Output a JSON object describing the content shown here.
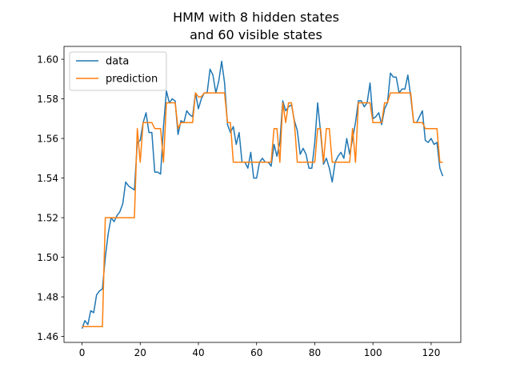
{
  "chart_data": {
    "type": "line",
    "title_lines": [
      "HMM with 8 hidden states",
      "and 60 visible states"
    ],
    "xlabel": "",
    "ylabel": "",
    "xlim": [
      -6.2,
      130.2
    ],
    "ylim": [
      1.457,
      1.6065
    ],
    "x_ticks": [
      0,
      20,
      40,
      60,
      80,
      100,
      120
    ],
    "y_ticks": [
      1.46,
      1.48,
      1.5,
      1.52,
      1.54,
      1.56,
      1.58,
      1.6
    ],
    "x_tick_labels": [
      "0",
      "20",
      "40",
      "60",
      "80",
      "100",
      "120"
    ],
    "y_tick_labels": [
      "1.46",
      "1.48",
      "1.50",
      "1.52",
      "1.54",
      "1.56",
      "1.58",
      "1.60"
    ],
    "grid": false,
    "legend_position": "top-left",
    "colors": {
      "data": "#1f77b4",
      "prediction": "#ff7f0e"
    },
    "series": [
      {
        "name": "data",
        "values": [
          1.464,
          1.468,
          1.466,
          1.473,
          1.472,
          1.481,
          1.483,
          1.484,
          1.5,
          1.512,
          1.52,
          1.518,
          1.521,
          1.523,
          1.527,
          1.538,
          1.536,
          1.535,
          1.534,
          1.558,
          1.559,
          1.568,
          1.573,
          1.563,
          1.563,
          1.543,
          1.543,
          1.542,
          1.566,
          1.584,
          1.578,
          1.58,
          1.579,
          1.562,
          1.569,
          1.568,
          1.574,
          1.572,
          1.571,
          1.583,
          1.575,
          1.58,
          1.583,
          1.583,
          1.595,
          1.592,
          1.583,
          1.589,
          1.599,
          1.588,
          1.567,
          1.563,
          1.566,
          1.557,
          1.563,
          1.548,
          1.548,
          1.545,
          1.553,
          1.54,
          1.54,
          1.548,
          1.55,
          1.548,
          1.548,
          1.546,
          1.557,
          1.551,
          1.558,
          1.579,
          1.574,
          1.576,
          1.577,
          1.569,
          1.564,
          1.552,
          1.555,
          1.552,
          1.545,
          1.545,
          1.558,
          1.578,
          1.563,
          1.547,
          1.55,
          1.545,
          1.538,
          1.548,
          1.551,
          1.553,
          1.55,
          1.56,
          1.552,
          1.56,
          1.568,
          1.579,
          1.579,
          1.576,
          1.578,
          1.588,
          1.57,
          1.571,
          1.573,
          1.567,
          1.575,
          1.578,
          1.593,
          1.591,
          1.591,
          1.583,
          1.585,
          1.585,
          1.592,
          1.581,
          1.568,
          1.568,
          1.571,
          1.574,
          1.559,
          1.558,
          1.56,
          1.557,
          1.558,
          1.545,
          1.541
        ]
      },
      {
        "name": "prediction",
        "values": [
          1.465,
          1.465,
          1.465,
          1.465,
          1.465,
          1.465,
          1.465,
          1.465,
          1.52,
          1.52,
          1.52,
          1.52,
          1.52,
          1.52,
          1.52,
          1.52,
          1.52,
          1.52,
          1.52,
          1.565,
          1.548,
          1.568,
          1.568,
          1.568,
          1.568,
          1.565,
          1.565,
          1.565,
          1.548,
          1.578,
          1.578,
          1.578,
          1.578,
          1.565,
          1.568,
          1.568,
          1.568,
          1.568,
          1.568,
          1.583,
          1.581,
          1.581,
          1.583,
          1.583,
          1.583,
          1.583,
          1.583,
          1.583,
          1.583,
          1.583,
          1.568,
          1.568,
          1.548,
          1.548,
          1.548,
          1.548,
          1.548,
          1.548,
          1.548,
          1.548,
          1.548,
          1.548,
          1.548,
          1.548,
          1.548,
          1.548,
          1.565,
          1.565,
          1.548,
          1.578,
          1.568,
          1.578,
          1.578,
          1.568,
          1.548,
          1.548,
          1.548,
          1.548,
          1.548,
          1.548,
          1.548,
          1.565,
          1.565,
          1.548,
          1.565,
          1.565,
          1.548,
          1.548,
          1.548,
          1.548,
          1.548,
          1.548,
          1.548,
          1.565,
          1.548,
          1.578,
          1.578,
          1.578,
          1.578,
          1.578,
          1.568,
          1.568,
          1.568,
          1.568,
          1.578,
          1.578,
          1.583,
          1.583,
          1.583,
          1.583,
          1.583,
          1.583,
          1.583,
          1.583,
          1.568,
          1.568,
          1.568,
          1.568,
          1.565,
          1.565,
          1.565,
          1.565,
          1.565,
          1.548,
          1.548
        ]
      }
    ]
  }
}
